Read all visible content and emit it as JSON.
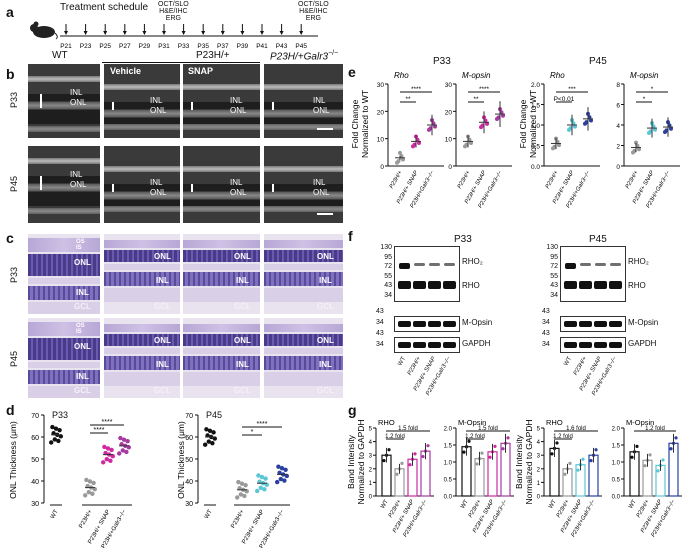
{
  "panels": {
    "a": "a",
    "b": "b",
    "c": "c",
    "d": "d",
    "e": "e",
    "f": "f",
    "g": "g"
  },
  "schedule": {
    "title": "Treatment schedule",
    "days": [
      "P21",
      "P23",
      "P25",
      "P27",
      "P29",
      "P31",
      "P33",
      "P35",
      "P37",
      "P39",
      "P41",
      "P43",
      "P45"
    ],
    "mid_labels": [
      "OCT/SLO",
      "H&E/IHC",
      "ERG"
    ],
    "end_labels": [
      "OCT/SLO",
      "H&E/IHC",
      "ERG"
    ]
  },
  "oct": {
    "col_wt": "WT",
    "col_p23h": "P23H/+",
    "col_ko": "P23H/+Galr3",
    "ko_sup": "−/−",
    "sub_vehicle": "Vehicle",
    "sub_snap": "SNAP",
    "row_p33": "P33",
    "row_p45": "P45",
    "inl": "INL",
    "onl": "ONL"
  },
  "histo": {
    "row_p33": "P33",
    "row_p45": "P45",
    "os": "OS",
    "is": "IS",
    "onl": "ONL",
    "inl": "INL",
    "gcl": "GCL"
  },
  "panel_d": {
    "ylabel": "ONL Thickness (μm)",
    "p33": "P33",
    "p45": "P45",
    "yticks": [
      "30",
      "40",
      "50",
      "60",
      "70"
    ],
    "wt": "WT",
    "xlabels": [
      "P23H/+",
      "P23H/+ SNAP",
      "P23H/+Galr3−/−"
    ],
    "sig1": "****",
    "sig2": "****",
    "sig3": "*",
    "sig4": "****"
  },
  "panel_e": {
    "ylabel1": "Fold Change",
    "ylabel2": "Normalized to WT",
    "p33": "P33",
    "p45": "P45",
    "rho": "Rho",
    "mopsin": "M-opsin",
    "yticks_p33": [
      "0",
      "10",
      "20",
      "30"
    ],
    "yticks_p45": [
      "0.0",
      "0.5",
      "1.0",
      "1.5",
      "2.0"
    ],
    "yticks_p45m": [
      "0",
      "2",
      "4",
      "6",
      "8"
    ],
    "xlabels": [
      "P23H/+",
      "P23H/+ SNAP",
      "P23H/+Galr3−/−"
    ],
    "sig_star4": "****",
    "sig_star2": "**",
    "sig_star3": "***",
    "sig_p": "P<0.01",
    "sig_star1": "*"
  },
  "panel_f": {
    "p33": "P33",
    "p45": "P45",
    "mw_top": [
      "130",
      "95",
      "72",
      "55",
      "43",
      "34"
    ],
    "mw_m": "34",
    "mw_g": "43",
    "rho2": "RHO₂",
    "rho": "RHO",
    "mopsin": "M-Opsin",
    "gapdh": "GAPDH",
    "xlabels": [
      "WT",
      "P23H/+",
      "P23H/+ SNAP",
      "P23H/+Galr3−/−"
    ]
  },
  "panel_g": {
    "ylabel1": "Band Intensity",
    "ylabel2": "Normalized to GAPDH",
    "p33": "P33",
    "p45": "P45",
    "rho": "RHO",
    "mopsin": "M-Opsin",
    "fold15": "1.5 fold",
    "fold12": "1.2 fold",
    "fold16": "1.6 fold",
    "yticks": [
      "0",
      "1",
      "2",
      "3",
      "4",
      "5"
    ],
    "yticks_b": [
      "0.0",
      "0.5",
      "1.0",
      "1.5",
      "2.0"
    ],
    "xlabels": [
      "WT",
      "P23H/+",
      "P23H/+ SNAP",
      "P23H/+Galr3−/−"
    ]
  },
  "chart_data": [
    {
      "type": "scatter",
      "title": "P33",
      "ylabel": "ONL Thickness (μm)",
      "ylim": [
        30,
        70
      ],
      "categories": [
        "WT",
        "P23H/+",
        "P23H/+ SNAP",
        "P23H/+Galr3−/−"
      ],
      "means": [
        61,
        37,
        52,
        56
      ],
      "colors": [
        "#111111",
        "#9a9a9a",
        "#d02aa0",
        "#a73aa0"
      ]
    },
    {
      "type": "scatter",
      "title": "P45",
      "ylabel": "ONL Thickness (μm)",
      "ylim": [
        30,
        70
      ],
      "categories": [
        "WT",
        "P23H/+",
        "P23H/+ SNAP",
        "P23H/+Galr3−/−"
      ],
      "means": [
        60,
        36,
        39,
        43
      ],
      "colors": [
        "#111111",
        "#9a9a9a",
        "#5bc6d6",
        "#2a3f9f"
      ]
    },
    {
      "type": "scatter",
      "title": "P33 Rho",
      "ylim": [
        0,
        30
      ],
      "categories": [
        "P23H/+",
        "P23H/+ SNAP",
        "P23H/+Galr3−/−"
      ],
      "means": [
        3,
        9,
        15
      ]
    },
    {
      "type": "scatter",
      "title": "P33 M-opsin",
      "ylim": [
        0,
        30
      ],
      "categories": [
        "P23H/+",
        "P23H/+ SNAP",
        "P23H/+Galr3−/−"
      ],
      "means": [
        9,
        16,
        19
      ]
    },
    {
      "type": "scatter",
      "title": "P45 Rho",
      "ylim": [
        0,
        2
      ],
      "categories": [
        "P23H/+",
        "P23H/+ SNAP",
        "P23H/+Galr3−/−"
      ],
      "means": [
        0.55,
        1.0,
        1.15
      ]
    },
    {
      "type": "scatter",
      "title": "P45 M-opsin",
      "ylim": [
        0,
        8
      ],
      "categories": [
        "P23H/+",
        "P23H/+ SNAP",
        "P23H/+Galr3−/−"
      ],
      "means": [
        1.8,
        3.7,
        3.8
      ]
    },
    {
      "type": "bar",
      "title": "P33 RHO",
      "ylim": [
        0,
        5
      ],
      "categories": [
        "WT",
        "P23H/+",
        "P23H/+ SNAP",
        "P23H/+Galr3−/−"
      ],
      "values": [
        3.0,
        2.0,
        2.7,
        3.3
      ]
    },
    {
      "type": "bar",
      "title": "P33 M-Opsin",
      "ylim": [
        0,
        2
      ],
      "categories": [
        "WT",
        "P23H/+",
        "P23H/+ SNAP",
        "P23H/+Galr3−/−"
      ],
      "values": [
        1.45,
        1.1,
        1.3,
        1.55
      ]
    },
    {
      "type": "bar",
      "title": "P45 RHO",
      "ylim": [
        0,
        5
      ],
      "categories": [
        "WT",
        "P23H/+",
        "P23H/+ SNAP",
        "P23H/+Galr3−/−"
      ],
      "values": [
        3.5,
        2.0,
        2.3,
        3.0
      ]
    },
    {
      "type": "bar",
      "title": "P45 M-Opsin",
      "ylim": [
        0,
        2
      ],
      "categories": [
        "WT",
        "P23H/+",
        "P23H/+ SNAP",
        "P23H/+Galr3−/−"
      ],
      "values": [
        1.3,
        1.05,
        0.9,
        1.55
      ]
    }
  ]
}
